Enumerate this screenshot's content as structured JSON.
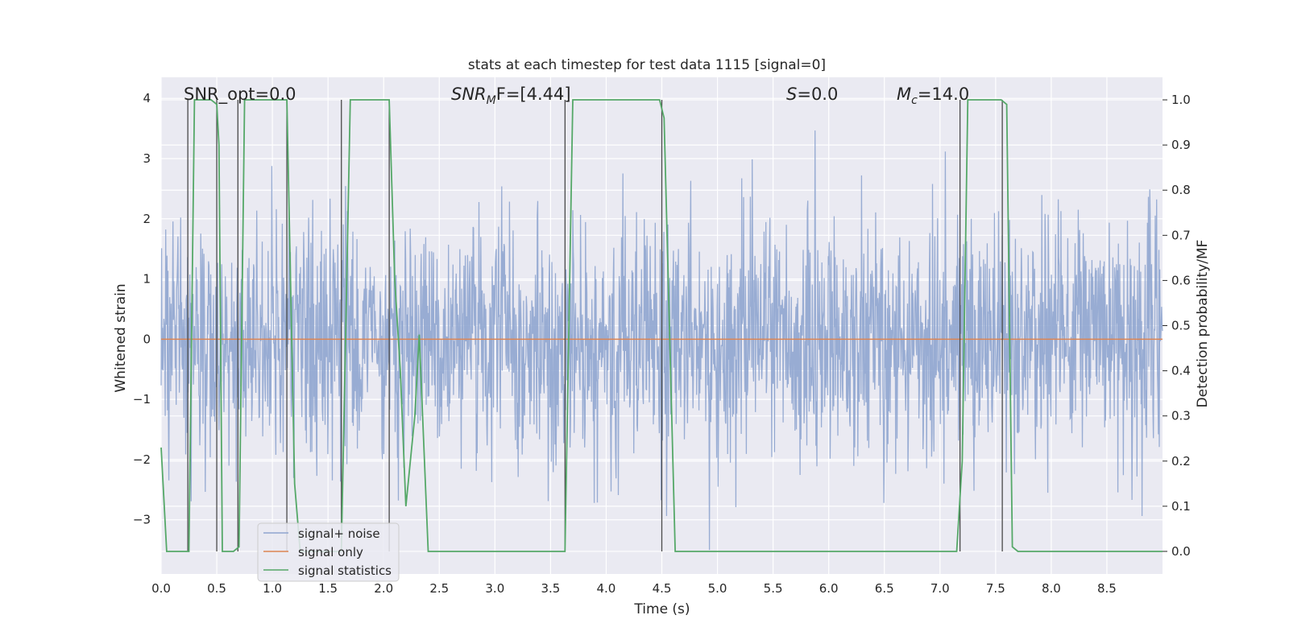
{
  "chart_data": {
    "type": "line",
    "title": "stats at each timestep for test data 1115 [signal=0]",
    "xlabel": "Time (s)",
    "ylabel": "Whitened strain",
    "ylabel_right": "Detection probability/MF",
    "xlim": [
      0,
      9.0
    ],
    "ylim": [
      -3.9,
      4.35
    ],
    "ylim_right": [
      -0.05,
      1.05
    ],
    "xticks": [
      "0.0",
      "0.5",
      "1.0",
      "1.5",
      "2.0",
      "2.5",
      "3.0",
      "3.5",
      "4.0",
      "4.5",
      "5.0",
      "5.5",
      "6.0",
      "6.5",
      "7.0",
      "7.5",
      "8.0",
      "8.5"
    ],
    "yticks": [
      "4",
      "3",
      "2",
      "1",
      "0",
      "−1",
      "−2",
      "−3"
    ],
    "yticks_right": [
      "1.0",
      "0.9",
      "0.8",
      "0.7",
      "0.6",
      "0.5",
      "0.4",
      "0.3",
      "0.2",
      "0.1",
      "0.0"
    ],
    "annotations": {
      "snr_opt": "SNR_opt=0.0",
      "snr_mf_main": "SNR",
      "snr_mf_sub": "M",
      "snr_mf_rest": "F=[4.44]",
      "s_main": "S",
      "s_rest": "=0.0",
      "mc_main": "M",
      "mc_sub": "c",
      "mc_rest": "=14.0"
    },
    "legend": {
      "position": "lower-left",
      "entries": [
        "signal+ noise",
        "signal only",
        "signal statistics"
      ]
    },
    "colors": {
      "noise": "#8fa5cf",
      "signal": "#dd8452",
      "stats": "#55a868",
      "vline": "#4a4a4a",
      "bg": "#eaeaf2",
      "grid": "#ffffff"
    },
    "series": [
      {
        "name": "signal+ noise",
        "axis": "left",
        "description": "whitened strain noise, roughly gaussian with sigma ~ 1, spanning about -3.5 to 3.6",
        "samples": 2200,
        "sigma": 1.0
      },
      {
        "name": "signal only",
        "axis": "left",
        "x": [
          0,
          9.0
        ],
        "y": [
          0,
          0
        ]
      },
      {
        "name": "signal statistics",
        "axis": "right",
        "x": [
          0.0,
          0.05,
          0.24,
          0.25,
          0.3,
          0.35,
          0.4,
          0.45,
          0.5,
          0.52,
          0.55,
          0.6,
          0.65,
          0.7,
          0.75,
          0.8,
          0.9,
          1.0,
          1.1,
          1.13,
          1.2,
          1.25,
          1.3,
          1.4,
          1.5,
          1.6,
          1.62,
          1.7,
          1.8,
          1.9,
          2.0,
          2.05,
          2.1,
          2.15,
          2.2,
          2.28,
          2.32,
          2.4,
          2.5,
          2.6,
          3.0,
          3.5,
          3.63,
          3.7,
          3.8,
          4.0,
          4.48,
          4.52,
          4.62,
          4.7,
          5.0,
          5.5,
          6.0,
          6.5,
          7.0,
          7.15,
          7.2,
          7.25,
          7.3,
          7.55,
          7.6,
          7.65,
          7.7,
          7.8,
          8.5,
          9.0
        ],
        "y": [
          0.23,
          0.0,
          0.0,
          0.0,
          1.0,
          1.0,
          1.0,
          1.0,
          0.99,
          0.9,
          0.0,
          0.0,
          0.0,
          0.01,
          1.0,
          1.0,
          1.0,
          1.0,
          1.0,
          1.0,
          0.15,
          0.0,
          0.0,
          0.0,
          0.0,
          0.0,
          0.0,
          1.0,
          1.0,
          1.0,
          1.0,
          1.0,
          0.6,
          0.4,
          0.1,
          0.3,
          0.48,
          0.0,
          0.0,
          0.0,
          0.0,
          0.0,
          0.0,
          1.0,
          1.0,
          1.0,
          1.0,
          0.96,
          0.0,
          0.0,
          0.0,
          0.0,
          0.0,
          0.0,
          0.0,
          0.0,
          0.2,
          1.0,
          1.0,
          1.0,
          0.99,
          0.01,
          0.0,
          0.0,
          0.0,
          0.0
        ]
      }
    ],
    "vlines_x": [
      0.24,
      0.5,
      0.69,
      1.13,
      1.62,
      2.05,
      3.63,
      4.5,
      7.18,
      7.56
    ]
  }
}
